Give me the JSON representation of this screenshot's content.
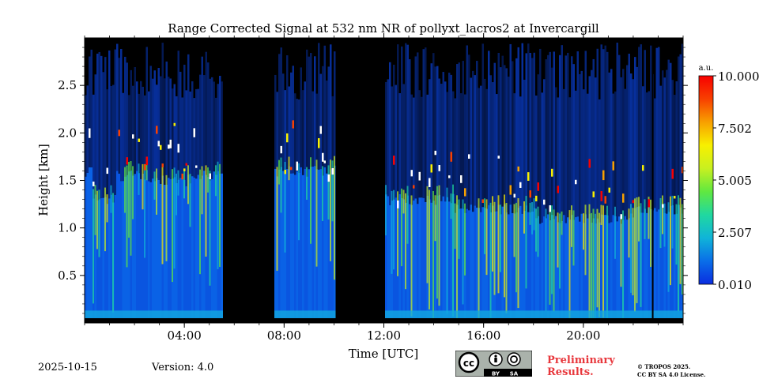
{
  "chart_data": {
    "type": "heatmap",
    "title": "Range Corrected Signal at 532 nm NR of pollyxt_lacros2 at Invercargill",
    "xlabel": "Time [UTC]",
    "ylabel": "Height [km]",
    "xlim_hours": [
      0,
      24
    ],
    "ylim_km": [
      0,
      3.0
    ],
    "x_ticks": [
      {
        "hour": 4,
        "label": "04:00"
      },
      {
        "hour": 8,
        "label": "08:00"
      },
      {
        "hour": 12,
        "label": "12:00"
      },
      {
        "hour": 16,
        "label": "16:00"
      },
      {
        "hour": 20,
        "label": "20:00"
      }
    ],
    "y_ticks": [
      {
        "km": 0.5,
        "label": "0.5"
      },
      {
        "km": 1.0,
        "label": "1.0"
      },
      {
        "km": 1.5,
        "label": "1.5"
      },
      {
        "km": 2.0,
        "label": "2.0"
      },
      {
        "km": 2.5,
        "label": "2.5"
      }
    ],
    "colorbar": {
      "unit": "a.u.",
      "min": 0.01,
      "max": 10.0,
      "ticks": [
        "0.010",
        "2.507",
        "5.005",
        "7.502",
        "10.000"
      ],
      "colormap": [
        "#0a2de0",
        "#0a6ee8",
        "#10b4d8",
        "#20d8a0",
        "#60e840",
        "#c8f020",
        "#f8f000",
        "#f8a000",
        "#f84000",
        "#f80000"
      ]
    },
    "no_data_intervals_hours": [
      [
        5.5,
        7.55
      ],
      [
        10.0,
        12.0
      ]
    ],
    "boundary_layer_segments": [
      {
        "start": 0.0,
        "end": 0.3,
        "top_km": 1.6
      },
      {
        "start": 0.3,
        "end": 1.2,
        "top_km": 1.3
      },
      {
        "start": 1.2,
        "end": 2.5,
        "top_km": 1.55
      },
      {
        "start": 2.5,
        "end": 4.5,
        "top_km": 1.5
      },
      {
        "start": 4.5,
        "end": 5.5,
        "top_km": 1.55
      },
      {
        "start": 7.55,
        "end": 10.0,
        "top_km": 1.6
      },
      {
        "start": 12.0,
        "end": 14.8,
        "top_km": 1.3
      },
      {
        "start": 14.8,
        "end": 18.0,
        "top_km": 1.2
      },
      {
        "start": 18.0,
        "end": 22.0,
        "top_km": 1.1
      },
      {
        "start": 22.0,
        "end": 24.0,
        "top_km": 1.2
      }
    ]
  },
  "footer": {
    "date": "2025-10-15",
    "version": "Version: 4.0",
    "preliminary_line1": "Preliminary",
    "preliminary_line2": "Results.",
    "copyright_line1": "© TROPOS 2025.",
    "copyright_line2": "CC BY SA 4.0 License.",
    "license_by": "BY",
    "license_sa": "SA",
    "license_cc": "cc"
  }
}
